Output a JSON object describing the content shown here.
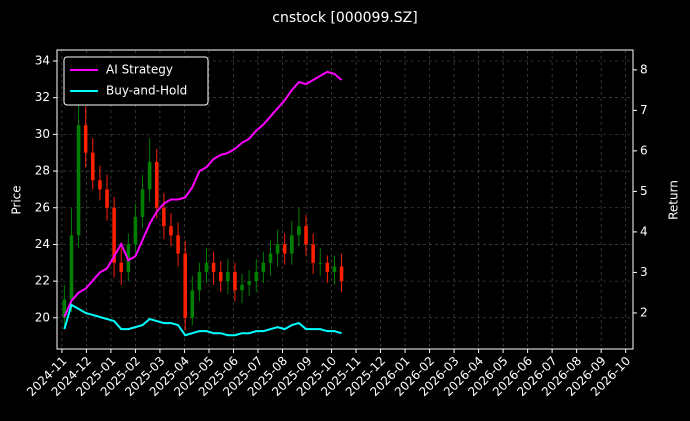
{
  "chart_data": {
    "type": "candlestick",
    "title": "cnstock [000099.SZ]",
    "y_label": "Price",
    "y2_label": "Return",
    "x": [
      0.1,
      0.39,
      0.68,
      0.97,
      1.26,
      1.55,
      1.84,
      2.13,
      2.42,
      2.71,
      3.0,
      3.29,
      3.58,
      3.87,
      4.16,
      4.45,
      4.74,
      5.03,
      5.32,
      5.61,
      5.9,
      6.19,
      6.48,
      6.77,
      7.06,
      7.35,
      7.64,
      7.93,
      8.22,
      8.51,
      8.8,
      9.09,
      9.38,
      9.67,
      9.96,
      10.25,
      10.54,
      10.83,
      11.12,
      11.41
    ],
    "open": [
      20.0,
      21.0,
      24.5,
      30.5,
      29.0,
      27.5,
      27.0,
      26.0,
      23.0,
      22.5,
      24.0,
      25.5,
      27.0,
      28.5,
      26.0,
      25.0,
      24.5,
      23.5,
      20.0,
      21.5,
      22.5,
      23.0,
      22.5,
      22.0,
      22.5,
      21.5,
      21.8,
      22.0,
      22.5,
      23.0,
      23.5,
      24.0,
      23.5,
      24.5,
      25.0,
      24.0,
      23.0,
      23.0,
      22.5,
      22.8
    ],
    "high": [
      21.8,
      26.0,
      32.5,
      31.5,
      29.8,
      28.3,
      27.8,
      26.6,
      23.8,
      24.6,
      26.2,
      27.8,
      29.8,
      29.2,
      26.8,
      25.7,
      25.2,
      24.2,
      22.3,
      23.0,
      23.8,
      23.6,
      23.1,
      23.2,
      23.0,
      22.4,
      22.6,
      23.2,
      23.6,
      24.2,
      24.8,
      24.6,
      25.3,
      26.0,
      25.6,
      24.6,
      23.8,
      23.4,
      23.4,
      23.5
    ],
    "low": [
      19.4,
      20.3,
      23.8,
      28.2,
      27.0,
      26.4,
      25.3,
      22.2,
      21.8,
      22.0,
      23.5,
      24.9,
      26.3,
      25.4,
      24.3,
      23.9,
      22.8,
      19.3,
      19.6,
      20.9,
      21.9,
      21.8,
      21.4,
      21.3,
      20.9,
      20.8,
      21.2,
      21.4,
      21.9,
      22.3,
      22.8,
      22.9,
      22.9,
      23.9,
      23.4,
      22.4,
      22.3,
      21.9,
      21.8,
      21.4
    ],
    "close": [
      21.0,
      24.5,
      30.5,
      29.0,
      27.5,
      27.0,
      26.0,
      23.0,
      22.5,
      24.0,
      25.5,
      27.0,
      28.5,
      26.0,
      25.0,
      24.5,
      23.5,
      20.0,
      21.5,
      22.5,
      23.0,
      22.5,
      22.0,
      22.5,
      21.5,
      21.8,
      22.0,
      22.5,
      23.0,
      23.5,
      24.0,
      23.5,
      24.5,
      25.0,
      24.0,
      23.0,
      23.0,
      22.5,
      22.8,
      22.0
    ],
    "up_color": "#008000",
    "down_color": "#ff2000",
    "series": [
      {
        "name": "AI Strategy",
        "color": "#ff00ff",
        "axis": "y2",
        "values": [
          1.9,
          2.3,
          2.5,
          2.6,
          2.8,
          3.0,
          3.1,
          3.4,
          3.7,
          3.3,
          3.4,
          3.8,
          4.2,
          4.5,
          4.7,
          4.8,
          4.8,
          4.85,
          5.1,
          5.5,
          5.6,
          5.8,
          5.9,
          5.95,
          6.05,
          6.2,
          6.3,
          6.5,
          6.65,
          6.85,
          7.05,
          7.25,
          7.5,
          7.7,
          7.65,
          7.75,
          7.85,
          7.95,
          7.9,
          7.75
        ]
      },
      {
        "name": "Buy-and-Hold",
        "color": "#00ffff",
        "axis": "y2",
        "values": [
          1.6,
          2.2,
          2.1,
          2.0,
          1.95,
          1.9,
          1.85,
          1.8,
          1.6,
          1.6,
          1.65,
          1.7,
          1.85,
          1.8,
          1.75,
          1.75,
          1.7,
          1.45,
          1.5,
          1.55,
          1.55,
          1.5,
          1.5,
          1.45,
          1.45,
          1.5,
          1.5,
          1.55,
          1.55,
          1.6,
          1.65,
          1.6,
          1.7,
          1.75,
          1.6,
          1.6,
          1.6,
          1.55,
          1.55,
          1.5
        ]
      }
    ],
    "xlim": [
      -0.2,
      23.3
    ],
    "xticks": [
      {
        "value": 0,
        "label": "2024-11"
      },
      {
        "value": 1,
        "label": "2024-12"
      },
      {
        "value": 2,
        "label": "2025-01"
      },
      {
        "value": 3,
        "label": "2025-02"
      },
      {
        "value": 4,
        "label": "2025-03"
      },
      {
        "value": 5,
        "label": "2025-04"
      },
      {
        "value": 6,
        "label": "2025-05"
      },
      {
        "value": 7,
        "label": "2025-06"
      },
      {
        "value": 8,
        "label": "2025-07"
      },
      {
        "value": 9,
        "label": "2025-08"
      },
      {
        "value": 10,
        "label": "2025-09"
      },
      {
        "value": 11,
        "label": "2025-10"
      },
      {
        "value": 12,
        "label": "2025-11"
      },
      {
        "value": 13,
        "label": "2025-12"
      },
      {
        "value": 14,
        "label": "2026-01"
      },
      {
        "value": 15,
        "label": "2026-02"
      },
      {
        "value": 16,
        "label": "2026-03"
      },
      {
        "value": 17,
        "label": "2026-04"
      },
      {
        "value": 18,
        "label": "2026-05"
      },
      {
        "value": 19,
        "label": "2026-06"
      },
      {
        "value": 20,
        "label": "2026-07"
      },
      {
        "value": 21,
        "label": "2026-08"
      },
      {
        "value": 22,
        "label": "2026-09"
      },
      {
        "value": 23,
        "label": "2026-10"
      }
    ],
    "ylim": [
      18.3,
      34.6
    ],
    "yticks": [
      20,
      22,
      24,
      26,
      28,
      30,
      32,
      34
    ],
    "y2lim": [
      1.11,
      8.49
    ],
    "y2ticks": [
      2,
      3,
      4,
      5,
      6,
      7,
      8
    ],
    "grid": true,
    "legend": "upper-left"
  }
}
